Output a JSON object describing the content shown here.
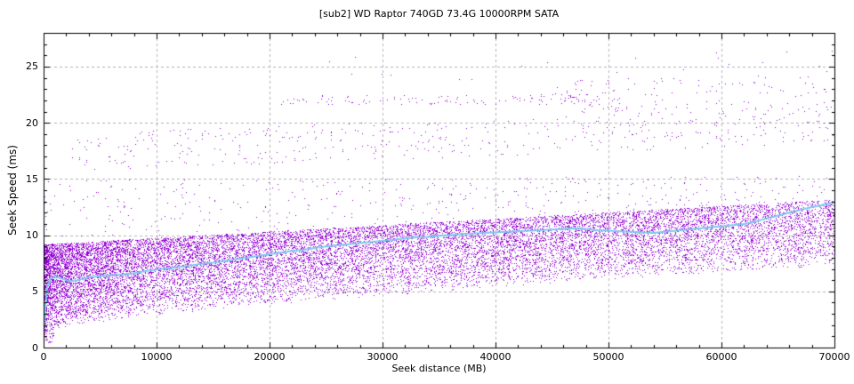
{
  "chart_data": {
    "type": "scatter",
    "title": "[sub2] WD Raptor 740GD 73.4G 10000RPM SATA",
    "xlabel": "Seek distance (MB)",
    "ylabel": "Seek Speed (ms)",
    "xlim": [
      0,
      70000
    ],
    "ylim": [
      0,
      28
    ],
    "x_major_ticks": [
      0,
      10000,
      20000,
      30000,
      40000,
      50000,
      60000,
      70000
    ],
    "x_minor_step": 2000,
    "y_major_ticks": [
      0,
      5,
      10,
      15,
      20,
      25
    ],
    "y_minor_step": 1,
    "grid": "dashed-gray-on-major-ticks",
    "legend": "none",
    "colors": {
      "points": "#9400d3",
      "avg_line": "#7ec8ee",
      "grid": "#b3b3b3",
      "axis": "#000000",
      "background": "#ffffff"
    },
    "render_seed": 1337,
    "series": [
      {
        "name": "seek-samples",
        "style": "dots",
        "color": "#9400d3",
        "density_bands": [
          {
            "name": "main-dense-band",
            "count": 18000,
            "x": {
              "min": 0,
              "max": 70000,
              "pow": 1.45
            },
            "y": {
              "bottom_start": 1.4,
              "bottom_end": 7.3,
              "bottom_pow": 0.7,
              "top_start": 9.2,
              "top_end": 13.2,
              "top_pow": 1.0,
              "mix_pow": 0.65
            }
          },
          {
            "name": "above-band-sparse",
            "count": 380,
            "x": {
              "min": 0,
              "max": 70000,
              "pow": 1.15
            },
            "y": {
              "bottom_start": 9.4,
              "bottom_end": 13.3,
              "bottom_pow": 1.0,
              "top_start": 14.9,
              "top_end": 15.3,
              "top_pow": 1.0,
              "mix_pow": 1.0
            }
          },
          {
            "name": "missed-rev-cloud-low",
            "count": 450,
            "x": {
              "min": 2500,
              "max": 70000,
              "pow": 1.1
            },
            "y": {
              "bottom_start": 15.7,
              "bottom_end": 18.2,
              "bottom_pow": 1.0,
              "top_start": 19.0,
              "top_end": 21.5,
              "top_pow": 1.0,
              "mix_pow": 1.0
            }
          },
          {
            "name": "missed-rev-streak-22ms",
            "count": 120,
            "x": {
              "min": 21000,
              "max": 50000,
              "pow": 1.0
            },
            "y": {
              "bottom_start": 21.6,
              "bottom_end": 21.7,
              "bottom_pow": 1.0,
              "top_start": 22.4,
              "top_end": 22.6,
              "top_pow": 1.0,
              "mix_pow": 1.0
            }
          },
          {
            "name": "missed-rev-cloud-high",
            "count": 130,
            "x": {
              "min": 45000,
              "max": 70000,
              "pow": 1.0
            },
            "y": {
              "bottom_start": 20.5,
              "bottom_end": 21.0,
              "bottom_pow": 1.0,
              "top_start": 23.3,
              "top_end": 24.3,
              "top_pow": 1.0,
              "mix_pow": 1.0
            }
          },
          {
            "name": "high-outliers",
            "count": 22,
            "x": {
              "min": 24000,
              "max": 70000,
              "pow": 0.85
            },
            "y": {
              "bottom_start": 23.4,
              "bottom_end": 23.6,
              "bottom_pow": 1.0,
              "top_start": 25.6,
              "top_end": 26.4,
              "top_pow": 1.0,
              "mix_pow": 1.0
            }
          },
          {
            "name": "near-zero-seeks",
            "count": 45,
            "x": {
              "min": 0,
              "max": 900,
              "pow": 1.0
            },
            "y": {
              "bottom_start": 0.4,
              "bottom_end": 0.6,
              "bottom_pow": 1.0,
              "top_start": 2.0,
              "top_end": 2.2,
              "top_pow": 1.0,
              "mix_pow": 1.0
            }
          }
        ]
      },
      {
        "name": "running-average",
        "style": "line",
        "color": "#7ec8ee",
        "width": 2,
        "points": [
          [
            0,
            1.3
          ],
          [
            150,
            3.4
          ],
          [
            300,
            5.3
          ],
          [
            600,
            6.1
          ],
          [
            1000,
            6.3
          ],
          [
            1600,
            6.15
          ],
          [
            2200,
            5.9
          ],
          [
            3000,
            6.0
          ],
          [
            4000,
            6.25
          ],
          [
            5000,
            6.35
          ],
          [
            6000,
            6.45
          ],
          [
            7000,
            6.5
          ],
          [
            8000,
            6.6
          ],
          [
            9000,
            6.8
          ],
          [
            10000,
            6.95
          ],
          [
            11000,
            7.05
          ],
          [
            12000,
            7.15
          ],
          [
            13000,
            7.3
          ],
          [
            14000,
            7.45
          ],
          [
            15000,
            7.55
          ],
          [
            16000,
            7.7
          ],
          [
            17000,
            7.85
          ],
          [
            18000,
            8.0
          ],
          [
            19000,
            8.15
          ],
          [
            20000,
            8.3
          ],
          [
            21000,
            8.45
          ],
          [
            22000,
            8.6
          ],
          [
            23000,
            8.7
          ],
          [
            24000,
            8.85
          ],
          [
            25000,
            9.0
          ],
          [
            26000,
            9.1
          ],
          [
            27000,
            9.2
          ],
          [
            28000,
            9.3
          ],
          [
            29000,
            9.4
          ],
          [
            30000,
            9.5
          ],
          [
            31000,
            9.6
          ],
          [
            32000,
            9.7
          ],
          [
            33000,
            9.8
          ],
          [
            34000,
            9.85
          ],
          [
            35000,
            9.95
          ],
          [
            36000,
            10.0
          ],
          [
            37000,
            10.1
          ],
          [
            38000,
            10.15
          ],
          [
            39000,
            10.2
          ],
          [
            40000,
            10.25
          ],
          [
            41000,
            10.3
          ],
          [
            42000,
            10.35
          ],
          [
            43000,
            10.4
          ],
          [
            44000,
            10.45
          ],
          [
            45000,
            10.5
          ],
          [
            46000,
            10.55
          ],
          [
            47000,
            10.6
          ],
          [
            48000,
            10.55
          ],
          [
            49000,
            10.45
          ],
          [
            50000,
            10.4
          ],
          [
            51000,
            10.35
          ],
          [
            52000,
            10.3
          ],
          [
            53000,
            10.25
          ],
          [
            54000,
            10.2
          ],
          [
            55000,
            10.3
          ],
          [
            56000,
            10.4
          ],
          [
            57000,
            10.5
          ],
          [
            58000,
            10.6
          ],
          [
            59000,
            10.7
          ],
          [
            60000,
            10.8
          ],
          [
            61000,
            10.9
          ],
          [
            62000,
            11.0
          ],
          [
            63000,
            11.2
          ],
          [
            64000,
            11.5
          ],
          [
            65000,
            11.75
          ],
          [
            66000,
            12.0
          ],
          [
            67000,
            12.25
          ],
          [
            68000,
            12.5
          ],
          [
            69000,
            12.7
          ],
          [
            70000,
            12.93
          ]
        ]
      }
    ]
  }
}
